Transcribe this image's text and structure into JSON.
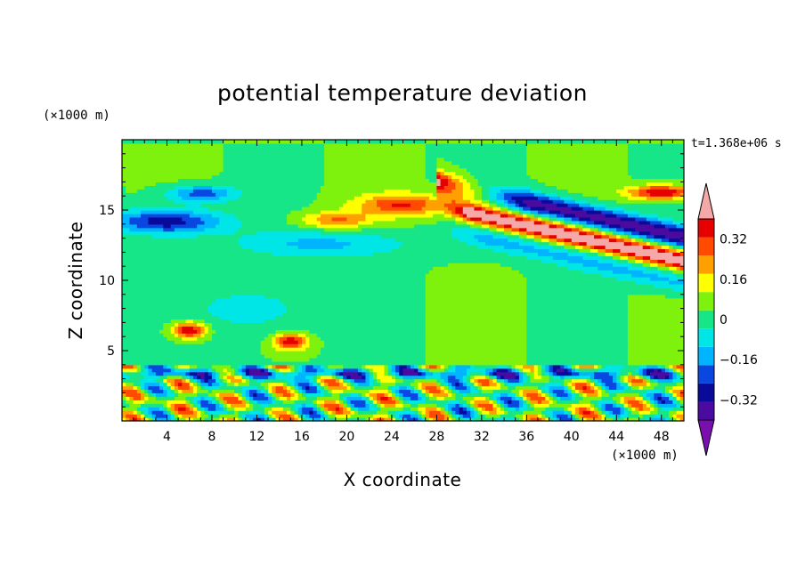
{
  "chart_data": {
    "type": "heatmap",
    "title": "potential temperature deviation",
    "xlabel": "X coordinate",
    "ylabel": "Z coordinate",
    "x_unit": "(×1000 m)",
    "y_unit": "(×1000 m)",
    "time_label": "t=1.368e+06 s",
    "xlim": [
      0,
      50
    ],
    "ylim": [
      0,
      20
    ],
    "x_ticks": [
      4,
      8,
      12,
      16,
      20,
      24,
      28,
      32,
      36,
      40,
      44,
      48
    ],
    "y_ticks": [
      5,
      10,
      15
    ],
    "x_tick_labels": [
      "4",
      "8",
      "12",
      "16",
      "20",
      "24",
      "28",
      "32",
      "36",
      "40",
      "44",
      "48"
    ],
    "y_tick_labels": [
      "5",
      "10",
      "15"
    ],
    "colorbar": {
      "levels": [
        -0.4,
        -0.32,
        -0.24,
        -0.16,
        -0.08,
        0,
        0.08,
        0.16,
        0.24,
        0.32,
        0.4
      ],
      "tick_labels": [
        "−0.32",
        "−0.16",
        "0",
        "0.16",
        "0.32"
      ],
      "tick_values": [
        -0.32,
        -0.16,
        0,
        0.16,
        0.32
      ],
      "colors": [
        "#7a0fb0",
        "#4b0aa0",
        "#0a0a9a",
        "#0a46e0",
        "#00b4ff",
        "#00e6e6",
        "#16e688",
        "#7ef20c",
        "#ffff00",
        "#ffa000",
        "#ff4a00",
        "#e60000",
        "#f5a8a8"
      ]
    },
    "regions": [
      {
        "label": "upper warm band",
        "x": [
          30,
          50
        ],
        "z": [
          12,
          16.5
        ],
        "value": 0.4
      },
      {
        "label": "upper cold band",
        "x": [
          34,
          50
        ],
        "z": [
          14,
          17
        ],
        "value": -0.4
      },
      {
        "label": "cold layer",
        "x": [
          0,
          14
        ],
        "z": [
          13.5,
          16
        ],
        "value": -0.3
      },
      {
        "label": "boundary layer oscillations",
        "x": [
          0,
          50
        ],
        "z": [
          0,
          4
        ],
        "value": 0.3
      },
      {
        "label": "mid-level warm patches",
        "x": [
          3,
          18
        ],
        "z": [
          5,
          8
        ],
        "value": 0.4
      }
    ]
  }
}
